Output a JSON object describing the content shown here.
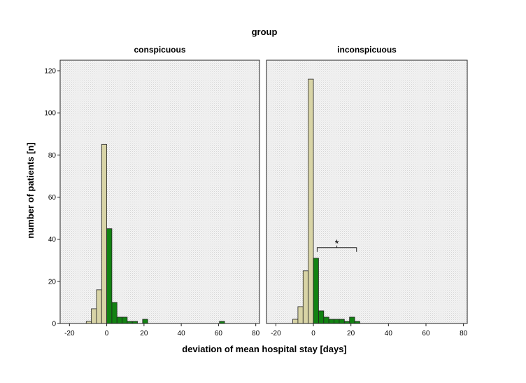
{
  "chart_data": {
    "type": "bar",
    "title": "group",
    "xlabel": "deviation of mean hospital stay [days]",
    "ylabel": "number of patients [n]",
    "xlim": [
      -25,
      82
    ],
    "ylim": [
      0,
      125
    ],
    "bin_width": 2.75,
    "x_ticks": [
      -20,
      0,
      20,
      40,
      60,
      80
    ],
    "y_ticks": [
      0,
      20,
      40,
      60,
      80,
      100,
      120
    ],
    "colors": {
      "negative": "#d8d4a6",
      "positive": "#128212",
      "plot_bg": "#f1f1f1"
    },
    "panels": [
      {
        "title": "conspicuous",
        "bins": [
          {
            "x0": -11.0,
            "value": 1,
            "group": "negative"
          },
          {
            "x0": -8.25,
            "value": 7,
            "group": "negative"
          },
          {
            "x0": -5.5,
            "value": 16,
            "group": "negative"
          },
          {
            "x0": -2.75,
            "value": 85,
            "group": "negative"
          },
          {
            "x0": 0.0,
            "value": 45,
            "group": "positive"
          },
          {
            "x0": 2.75,
            "value": 10,
            "group": "positive"
          },
          {
            "x0": 5.5,
            "value": 3,
            "group": "positive"
          },
          {
            "x0": 8.25,
            "value": 3,
            "group": "positive"
          },
          {
            "x0": 11.0,
            "value": 1,
            "group": "positive"
          },
          {
            "x0": 13.75,
            "value": 1,
            "group": "positive"
          },
          {
            "x0": 19.25,
            "value": 2,
            "group": "positive"
          },
          {
            "x0": 60.5,
            "value": 1,
            "group": "positive"
          }
        ]
      },
      {
        "title": "inconspicuous",
        "bins": [
          {
            "x0": -11.0,
            "value": 2,
            "group": "negative"
          },
          {
            "x0": -8.25,
            "value": 8,
            "group": "negative"
          },
          {
            "x0": -5.5,
            "value": 25,
            "group": "negative"
          },
          {
            "x0": -2.75,
            "value": 116,
            "group": "negative"
          },
          {
            "x0": 0.0,
            "value": 31,
            "group": "positive"
          },
          {
            "x0": 2.75,
            "value": 6,
            "group": "positive"
          },
          {
            "x0": 5.5,
            "value": 3,
            "group": "positive"
          },
          {
            "x0": 8.25,
            "value": 2,
            "group": "positive"
          },
          {
            "x0": 11.0,
            "value": 2,
            "group": "positive"
          },
          {
            "x0": 13.75,
            "value": 2,
            "group": "positive"
          },
          {
            "x0": 16.5,
            "value": 1,
            "group": "positive"
          },
          {
            "x0": 19.25,
            "value": 3,
            "group": "positive"
          },
          {
            "x0": 22.0,
            "value": 1,
            "group": "positive"
          }
        ],
        "annotation": {
          "text": "*",
          "x_from": 2,
          "x_to": 23,
          "y": 36
        }
      }
    ]
  }
}
